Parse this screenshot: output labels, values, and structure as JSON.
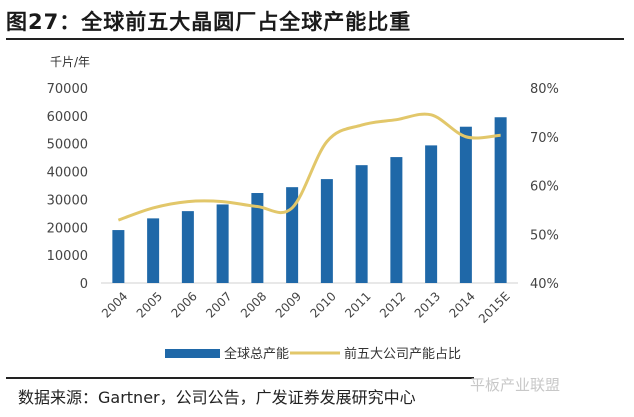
{
  "title": "图27：全球前五大晶圆厂占全球产能比重",
  "source": "数据来源：Gartner，公司公告，广发证券发展研究中心",
  "watermark": "平板产业联盟",
  "colors": {
    "bar": "#1f68a8",
    "line": "#e2c76a"
  },
  "chart_data": {
    "type": "bar+line",
    "title": "图27：全球前五大晶圆厂占全球产能比重",
    "ylabel": "千片/年",
    "categories": [
      "2004",
      "2005",
      "2006",
      "2007",
      "2008",
      "2009",
      "2010",
      "2011",
      "2012",
      "2013",
      "2014",
      "2015E"
    ],
    "ylim": [
      0,
      70000
    ],
    "y_ticks": [
      "0",
      "10000",
      "20000",
      "30000",
      "40000",
      "50000",
      "60000",
      "70000"
    ],
    "y2lim": [
      40,
      80
    ],
    "y2_ticks": [
      "40%",
      "50%",
      "60%",
      "70%",
      "80%"
    ],
    "series": [
      {
        "name": "全球总产能",
        "type": "bar",
        "axis": "left",
        "values": [
          19000,
          23200,
          25800,
          28200,
          32300,
          34400,
          37300,
          42300,
          45200,
          49400,
          56100,
          59500
        ]
      },
      {
        "name": "前五大公司产能占比",
        "type": "line",
        "axis": "right",
        "values": [
          52.9,
          55.4,
          56.7,
          56.7,
          55.7,
          55.4,
          69.0,
          72.4,
          73.5,
          74.5,
          70.0,
          70.3
        ]
      }
    ],
    "legend_position": "bottom",
    "grid": false
  }
}
